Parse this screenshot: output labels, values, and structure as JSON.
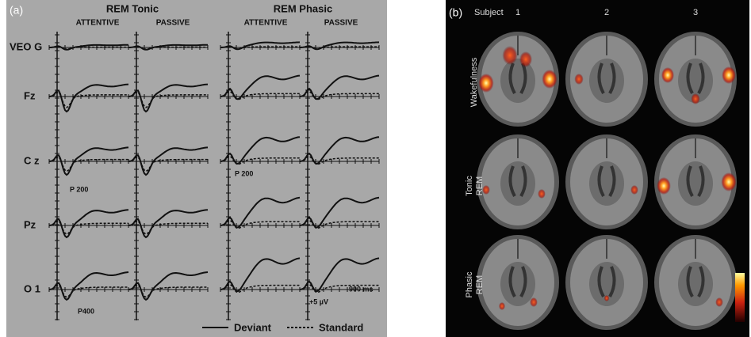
{
  "panel_a": {
    "label": "(a)",
    "groups": [
      {
        "title": "REM Tonic",
        "conditions": [
          "ATTENTIVE",
          "PASSIVE"
        ]
      },
      {
        "title": "REM Phasic",
        "conditions": [
          "ATTENTIVE",
          "PASSIVE"
        ]
      }
    ],
    "channels": [
      "VEO G",
      "Fz",
      "C z",
      "Pz",
      "O 1"
    ],
    "annotations": [
      "P 200",
      "P 200",
      "P400",
      "+5 µV",
      "900 ms"
    ],
    "legend": [
      "Deviant",
      "Standard"
    ]
  },
  "panel_b": {
    "label": "(b)",
    "subject_label": "Subject",
    "subjects": [
      "1",
      "2",
      "3"
    ],
    "rows": [
      [
        "Wakefulness"
      ],
      [
        "Tonic",
        "REM"
      ],
      [
        "Phasic",
        "REM"
      ]
    ]
  }
}
